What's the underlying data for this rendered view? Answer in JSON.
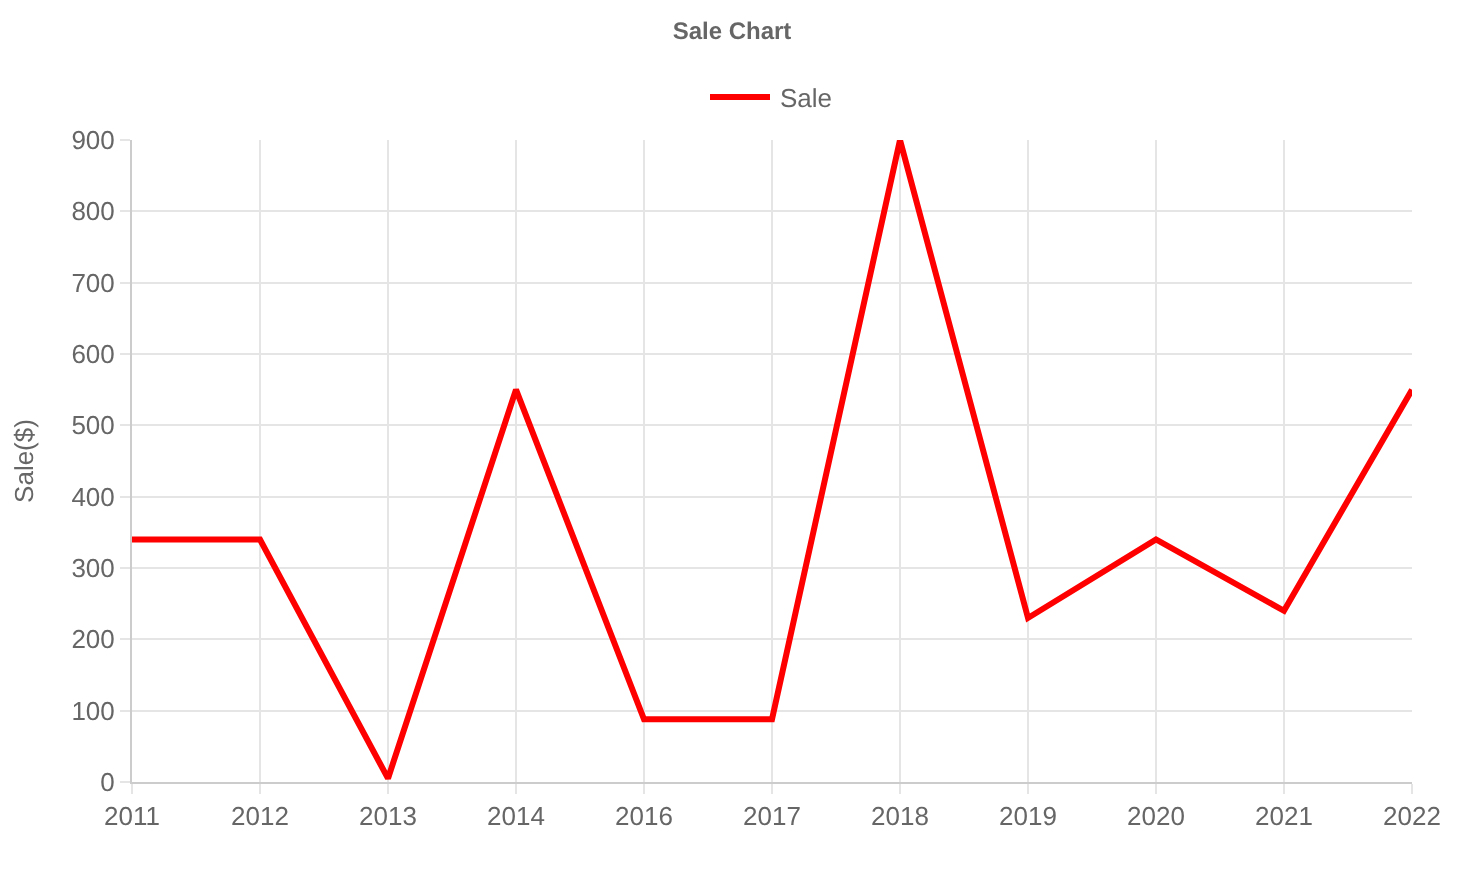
{
  "chart_data": {
    "type": "line",
    "title": "Sale Chart",
    "ylabel": "Sale($)",
    "categories": [
      "2011",
      "2012",
      "2013",
      "2014",
      "2016",
      "2017",
      "2018",
      "2019",
      "2020",
      "2021",
      "2022"
    ],
    "series": [
      {
        "name": "Sale",
        "color": "#ff0000",
        "values": [
          340,
          340,
          5,
          550,
          88,
          88,
          900,
          230,
          340,
          240,
          550
        ]
      }
    ],
    "ylim": [
      0,
      900
    ],
    "yticks": [
      0,
      100,
      200,
      300,
      400,
      500,
      600,
      700,
      800,
      900
    ],
    "grid": true,
    "legend": "top",
    "marker": "none",
    "line_style": "solid"
  }
}
